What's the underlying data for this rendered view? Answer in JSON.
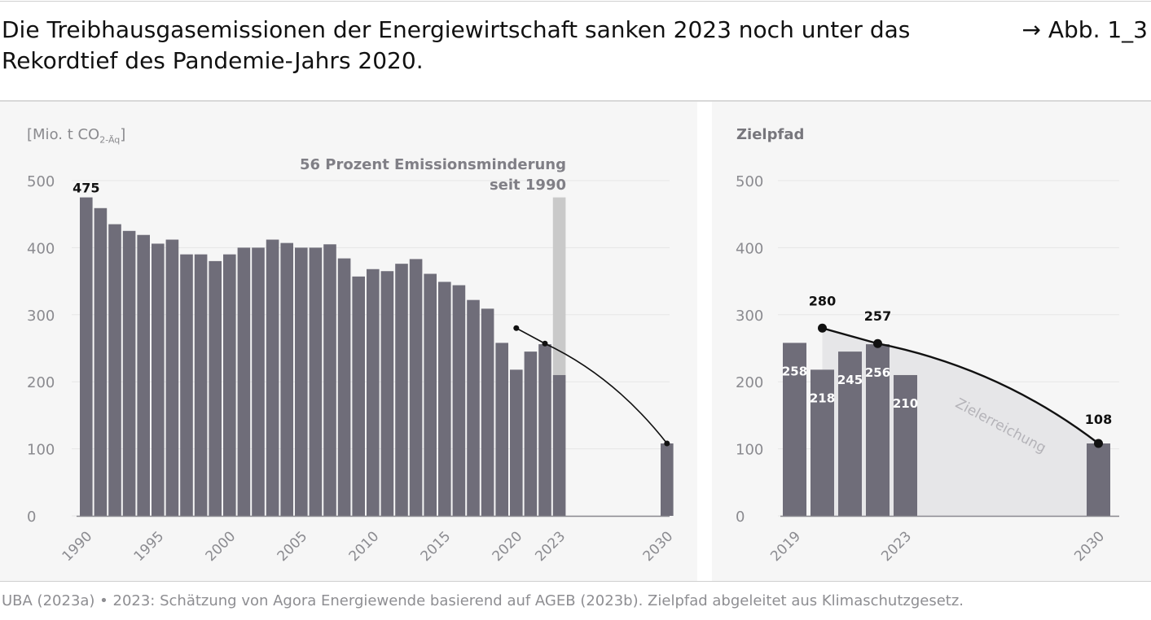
{
  "header": {
    "title": "Die Treibhausgasemissionen der Energiewirtschaft sanken 2023 noch unter das Rekordtief des Pandemie-Jahrs 2020.",
    "figure_ref": "→ Abb. 1_3"
  },
  "footer": {
    "source": "UBA (2023a) • 2023: Schätzung von Agora Energiewende basierend auf AGEB (2023b). Zielpfad abgeleitet aus Klimaschutzgesetz."
  },
  "colors": {
    "bar": "#6f6d79",
    "highlight": "#c9c9c9",
    "target_area": "#e6e6e8",
    "line": "#111111",
    "panel_bg": "#f6f6f6"
  },
  "chart_data": [
    {
      "type": "bar",
      "ylabel": "Mio. t CO",
      "ylabel_sub": "2-Äq",
      "ylim": [
        0,
        500
      ],
      "yticks": [
        0,
        100,
        200,
        300,
        400,
        500
      ],
      "xticks": [
        1990,
        1995,
        2000,
        2005,
        2010,
        2015,
        2020,
        2023,
        2030
      ],
      "x": [
        1990,
        1991,
        1992,
        1993,
        1994,
        1995,
        1996,
        1997,
        1998,
        1999,
        2000,
        2001,
        2002,
        2003,
        2004,
        2005,
        2006,
        2007,
        2008,
        2009,
        2010,
        2011,
        2012,
        2013,
        2014,
        2015,
        2016,
        2017,
        2018,
        2019,
        2020,
        2021,
        2022,
        2023,
        2030
      ],
      "values": [
        475,
        459,
        435,
        425,
        419,
        406,
        412,
        390,
        390,
        380,
        390,
        400,
        400,
        412,
        407,
        400,
        400,
        405,
        384,
        357,
        368,
        365,
        376,
        383,
        361,
        349,
        344,
        322,
        309,
        258,
        218,
        245,
        256,
        210,
        108
      ],
      "data_labels": [
        {
          "x": 1990,
          "label": "475"
        }
      ],
      "annotation": {
        "line1": "56 Prozent Emissionsminderung",
        "line2": "seit 1990",
        "from": 475,
        "to": 210,
        "year": 2023
      },
      "target_path": [
        {
          "x": 2020,
          "y": 280
        },
        {
          "x": 2022,
          "y": 257
        },
        {
          "x": 2030,
          "y": 108
        }
      ]
    },
    {
      "type": "bar",
      "title": "Zielpfad",
      "ylim": [
        0,
        500
      ],
      "yticks": [
        0,
        100,
        200,
        300,
        400,
        500
      ],
      "xticks": [
        2019,
        2023,
        2030
      ],
      "x": [
        2019,
        2020,
        2021,
        2022,
        2023,
        2030
      ],
      "values": [
        258,
        218,
        245,
        256,
        210,
        108
      ],
      "value_labels": [
        "258",
        "218",
        "245",
        "256",
        "210",
        ""
      ],
      "target_path": [
        {
          "x": 2020,
          "y": 280,
          "label": "280"
        },
        {
          "x": 2022,
          "y": 257,
          "label": "257"
        },
        {
          "x": 2030,
          "y": 108,
          "label": "108"
        }
      ],
      "area_label": "Zielerreichung"
    }
  ]
}
